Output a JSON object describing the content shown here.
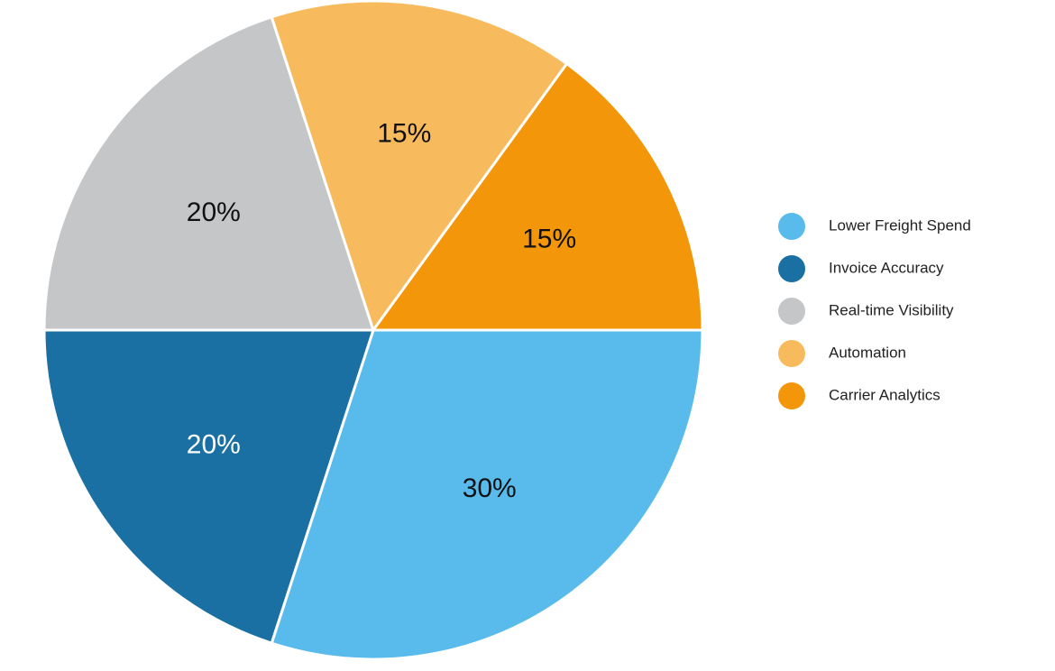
{
  "chart_data": {
    "type": "pie",
    "categories": [
      "Lower Freight Spend",
      "Invoice Accuracy",
      "Real-time Visibility",
      "Automation",
      "Carrier Analytics"
    ],
    "values": [
      30,
      20,
      20,
      15,
      15
    ],
    "value_labels": [
      "30%",
      "20%",
      "20%",
      "15%",
      "15%"
    ],
    "colors": [
      "#58bbec",
      "#1a70a3",
      "#c4c6c8",
      "#f7bb5e",
      "#f3960a"
    ],
    "legend": "right"
  }
}
